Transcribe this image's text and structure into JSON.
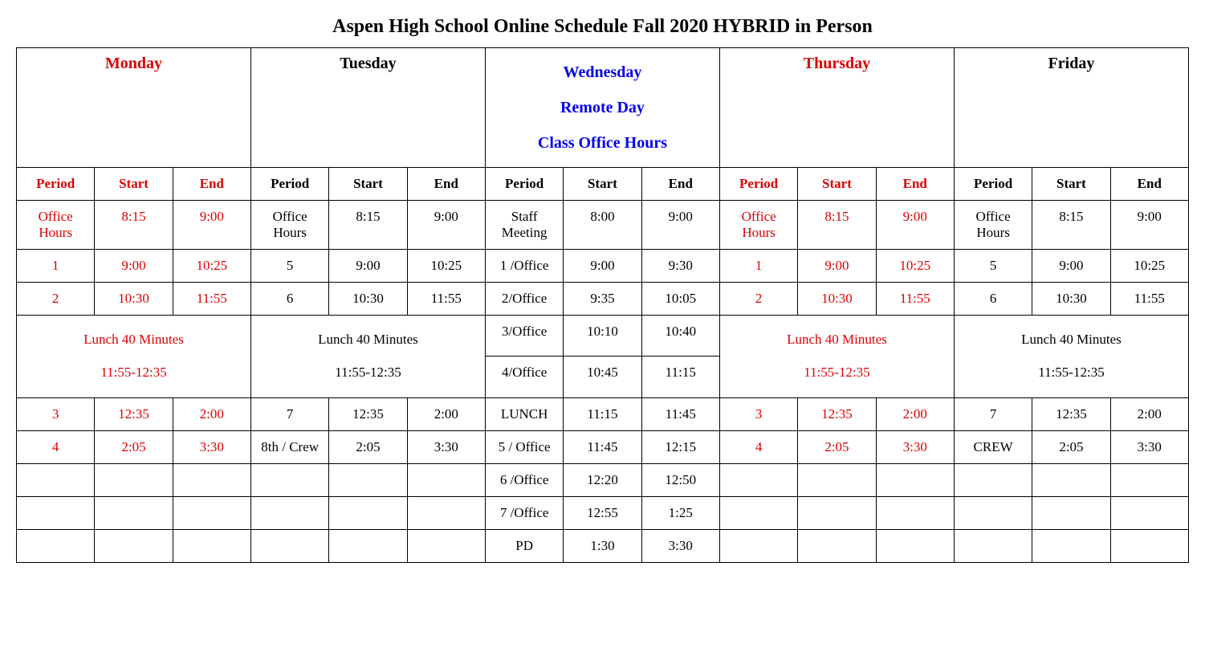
{
  "title": "Aspen High School Online Schedule Fall 2020 HYBRID in Person",
  "colors": {
    "red": "#dd0000",
    "blue": "#0000ee",
    "black": "#000000",
    "border": "#000000",
    "background": "#ffffff"
  },
  "days": {
    "mon": {
      "label": "Monday",
      "color": "red"
    },
    "tue": {
      "label": "Tuesday",
      "color": "black"
    },
    "wed": {
      "label": "Wednesday",
      "sub1": "Remote Day",
      "sub2": "Class Office Hours",
      "color": "blue"
    },
    "thu": {
      "label": "Thursday",
      "color": "red"
    },
    "fri": {
      "label": "Friday",
      "color": "black"
    }
  },
  "col_headers": {
    "period": "Period",
    "start": "Start",
    "end": "End"
  },
  "lunch": {
    "label": "Lunch 40 Minutes",
    "time": "11:55-12:35"
  },
  "rows": {
    "mon": [
      {
        "period": "Office Hours",
        "start": "8:15",
        "end": "9:00"
      },
      {
        "period": "1",
        "start": "9:00",
        "end": "10:25"
      },
      {
        "period": "2",
        "start": "10:30",
        "end": "11:55"
      },
      {
        "period": "3",
        "start": "12:35",
        "end": "2:00"
      },
      {
        "period": "4",
        "start": "2:05",
        "end": "3:30"
      }
    ],
    "tue": [
      {
        "period": "Office Hours",
        "start": "8:15",
        "end": "9:00"
      },
      {
        "period": "5",
        "start": "9:00",
        "end": "10:25"
      },
      {
        "period": "6",
        "start": "10:30",
        "end": "11:55"
      },
      {
        "period": "7",
        "start": "12:35",
        "end": "2:00"
      },
      {
        "period": "8th / Crew",
        "start": "2:05",
        "end": "3:30"
      }
    ],
    "wed": [
      {
        "period": "Staff Meeting",
        "start": "8:00",
        "end": "9:00"
      },
      {
        "period": "1 /Office",
        "start": "9:00",
        "end": "9:30"
      },
      {
        "period": "2/Office",
        "start": "9:35",
        "end": "10:05"
      },
      {
        "period": "3/Office",
        "start": "10:10",
        "end": "10:40"
      },
      {
        "period": "4/Office",
        "start": "10:45",
        "end": "11:15"
      },
      {
        "period": "LUNCH",
        "start": "11:15",
        "end": "11:45"
      },
      {
        "period": "5 / Office",
        "start": "11:45",
        "end": "12:15"
      },
      {
        "period": "6 /Office",
        "start": "12:20",
        "end": "12:50"
      },
      {
        "period": "7 /Office",
        "start": "12:55",
        "end": "1:25"
      },
      {
        "period": "PD",
        "start": "1:30",
        "end": "3:30"
      }
    ],
    "thu": [
      {
        "period": "Office Hours",
        "start": "8:15",
        "end": "9:00"
      },
      {
        "period": "1",
        "start": "9:00",
        "end": "10:25"
      },
      {
        "period": "2",
        "start": "10:30",
        "end": "11:55"
      },
      {
        "period": "3",
        "start": "12:35",
        "end": "2:00"
      },
      {
        "period": "4",
        "start": "2:05",
        "end": "3:30"
      }
    ],
    "fri": [
      {
        "period": "Office Hours",
        "start": "8:15",
        "end": "9:00"
      },
      {
        "period": "5",
        "start": "9:00",
        "end": "10:25"
      },
      {
        "period": "6",
        "start": "10:30",
        "end": "11:55"
      },
      {
        "period": "7",
        "start": "12:35",
        "end": "2:00"
      },
      {
        "period": "CREW",
        "start": "2:05",
        "end": "3:30"
      }
    ]
  }
}
